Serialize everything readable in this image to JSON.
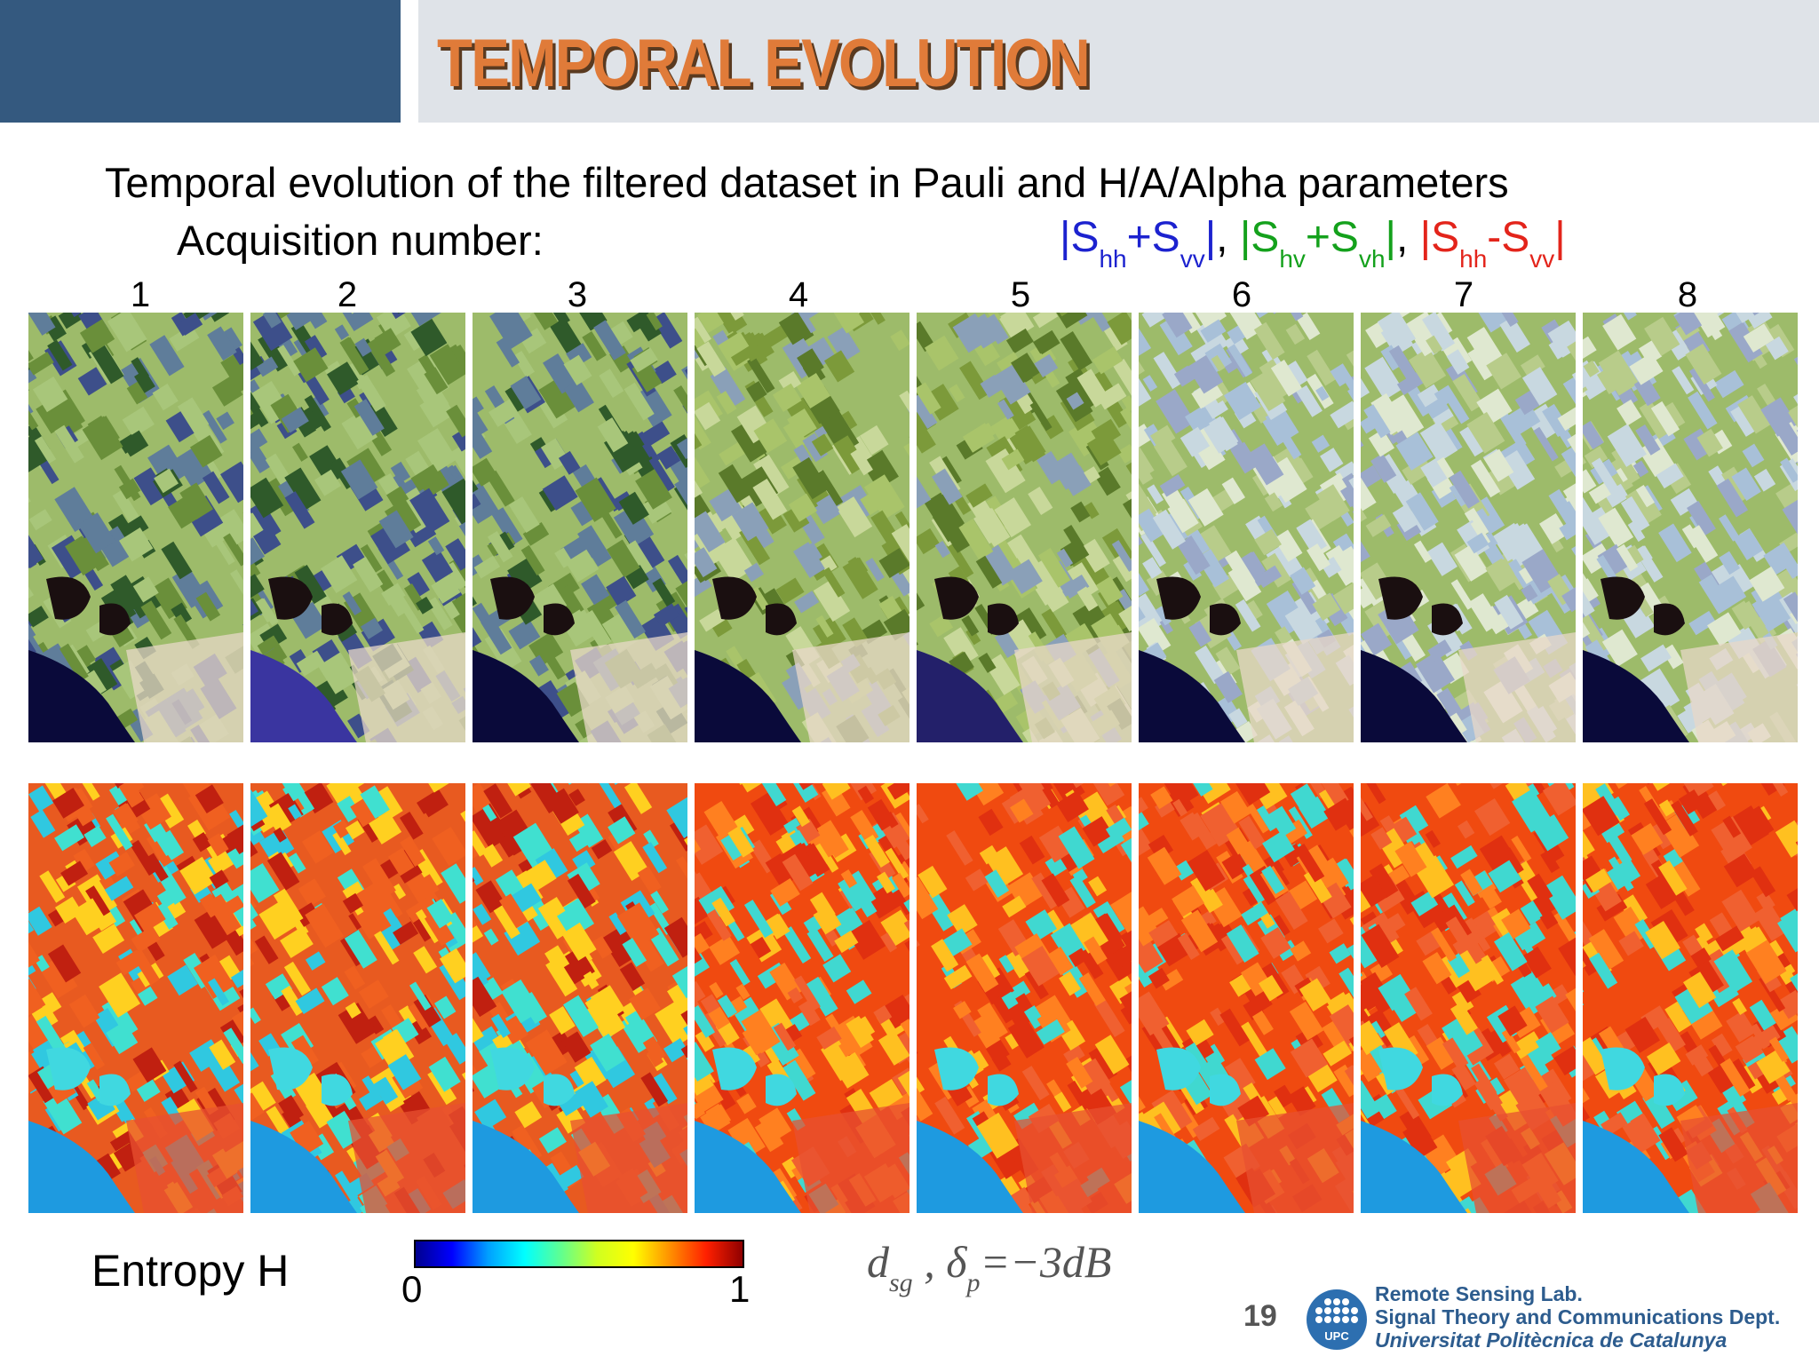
{
  "header": {
    "title": "TEMPORAL EVOLUTION"
  },
  "slide": {
    "subtitle": "Temporal evolution of the filtered dataset in Pauli and H/A/Alpha parameters",
    "acquisition_label": "Acquisition number:",
    "pauli_legend": {
      "blue": {
        "open": "|S",
        "sub1": "hh",
        "op": "+S",
        "sub2": "vv",
        "close": "|"
      },
      "sep1": ", ",
      "green": {
        "open": "|S",
        "sub1": "hv",
        "op": "+S",
        "sub2": "vh",
        "close": "|"
      },
      "sep2": ", ",
      "red": {
        "open": "|S",
        "sub1": "hh",
        "op": "-S",
        "sub2": "vv",
        "close": "|"
      },
      "colors": {
        "blue": "#1c22cf",
        "green": "#14a11c",
        "red": "#e3241b"
      }
    },
    "acquisitions": [
      "1",
      "2",
      "3",
      "4",
      "5",
      "6",
      "7",
      "8"
    ],
    "entropy_label": "Entropy H",
    "colorbar": {
      "min": "0",
      "max": "1",
      "colormap": "jet"
    },
    "formula": {
      "d": "d",
      "sub1": "sg",
      "comma": " , ",
      "delta": "δ",
      "sub2": "p",
      "eq": "=−3",
      "unit": "dB"
    },
    "page_number": "19"
  },
  "footer": {
    "lab": "Remote Sensing Lab.",
    "dept": "Signal Theory and Communications Dept.",
    "univ": "Universitat Politècnica de Catalunya",
    "logo_text": "UPC"
  }
}
